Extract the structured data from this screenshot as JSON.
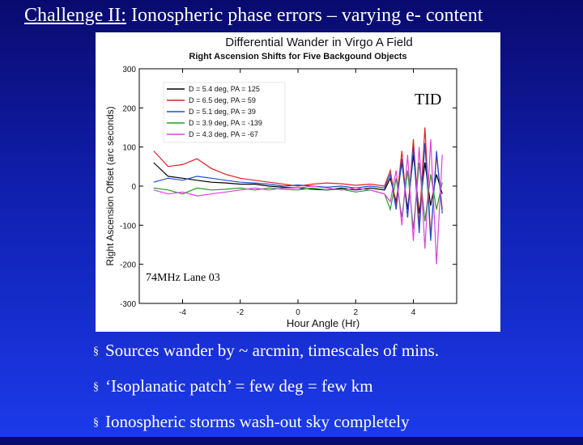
{
  "slide": {
    "title_prefix": "Challenge II:",
    "title_rest": " Ionospheric phase errors – varying e- content",
    "bullet_marker": "§",
    "bullets": [
      "Sources wander by ~ arcmin, timescales of mins.",
      "‘Isoplanatic patch’ = few deg = few km",
      "Ionospheric storms wash-out sky completely"
    ]
  },
  "chart_data": {
    "type": "line",
    "title": "Differential Wander in Virgo A Field",
    "subtitle": "Right Ascension Shifts for Five Backgound Objects",
    "xlabel": "Hour Angle (Hr)",
    "ylabel": "Right Ascension Offset (arc seconds)",
    "xlim": [
      -5.5,
      5.5
    ],
    "ylim": [
      -300,
      300
    ],
    "xticks": [
      -4,
      -2,
      0,
      2,
      4
    ],
    "yticks": [
      -300,
      -200,
      -100,
      0,
      100,
      200,
      300
    ],
    "grid": false,
    "legend_position": "top-left",
    "annotations": [
      "TID",
      "74MHz Lane 03"
    ],
    "x": [
      -5.0,
      -4.5,
      -4.0,
      -3.5,
      -3.0,
      -2.5,
      -2.0,
      -1.5,
      -1.0,
      -0.5,
      0.0,
      0.5,
      1.0,
      1.5,
      2.0,
      2.5,
      3.0,
      3.2,
      3.4,
      3.6,
      3.8,
      4.0,
      4.2,
      4.4,
      4.6,
      4.8,
      5.0
    ],
    "series": [
      {
        "name": "D = 5.4 deg, PA = 125",
        "color": "#000000",
        "values": [
          60,
          25,
          20,
          15,
          10,
          8,
          5,
          5,
          0,
          -3,
          -5,
          -8,
          -10,
          -5,
          -10,
          -5,
          -10,
          20,
          -40,
          60,
          -60,
          80,
          -70,
          60,
          -50,
          30,
          -20
        ]
      },
      {
        "name": "D = 6.5 deg, PA = 59",
        "color": "#e02020",
        "values": [
          90,
          50,
          55,
          70,
          45,
          30,
          20,
          15,
          10,
          5,
          0,
          5,
          8,
          6,
          2,
          5,
          0,
          40,
          -50,
          90,
          -80,
          120,
          -100,
          150,
          -130,
          80,
          -60
        ]
      },
      {
        "name": "D = 5.1 deg, PA = 39",
        "color": "#2050d0",
        "values": [
          10,
          20,
          15,
          25,
          20,
          15,
          10,
          8,
          5,
          0,
          3,
          0,
          -3,
          0,
          -5,
          0,
          -5,
          30,
          -60,
          70,
          -80,
          100,
          -120,
          110,
          -140,
          90,
          -70
        ]
      },
      {
        "name": "D = 3.9 deg, PA = -139",
        "color": "#20a020",
        "values": [
          -5,
          -10,
          -20,
          -5,
          -10,
          -8,
          -5,
          -10,
          -5,
          -8,
          -10,
          -5,
          -10,
          -8,
          -15,
          -10,
          -20,
          -60,
          20,
          -80,
          40,
          -110,
          60,
          -90,
          30,
          -60,
          10
        ]
      },
      {
        "name": "D = 4.3 deg, PA = -67",
        "color": "#e040e0",
        "values": [
          -10,
          -20,
          -15,
          -25,
          -20,
          -15,
          -10,
          -5,
          -10,
          -5,
          -5,
          0,
          -5,
          -10,
          -5,
          -10,
          -20,
          -40,
          40,
          -100,
          80,
          -140,
          100,
          -160,
          120,
          -200,
          80
        ]
      }
    ]
  }
}
